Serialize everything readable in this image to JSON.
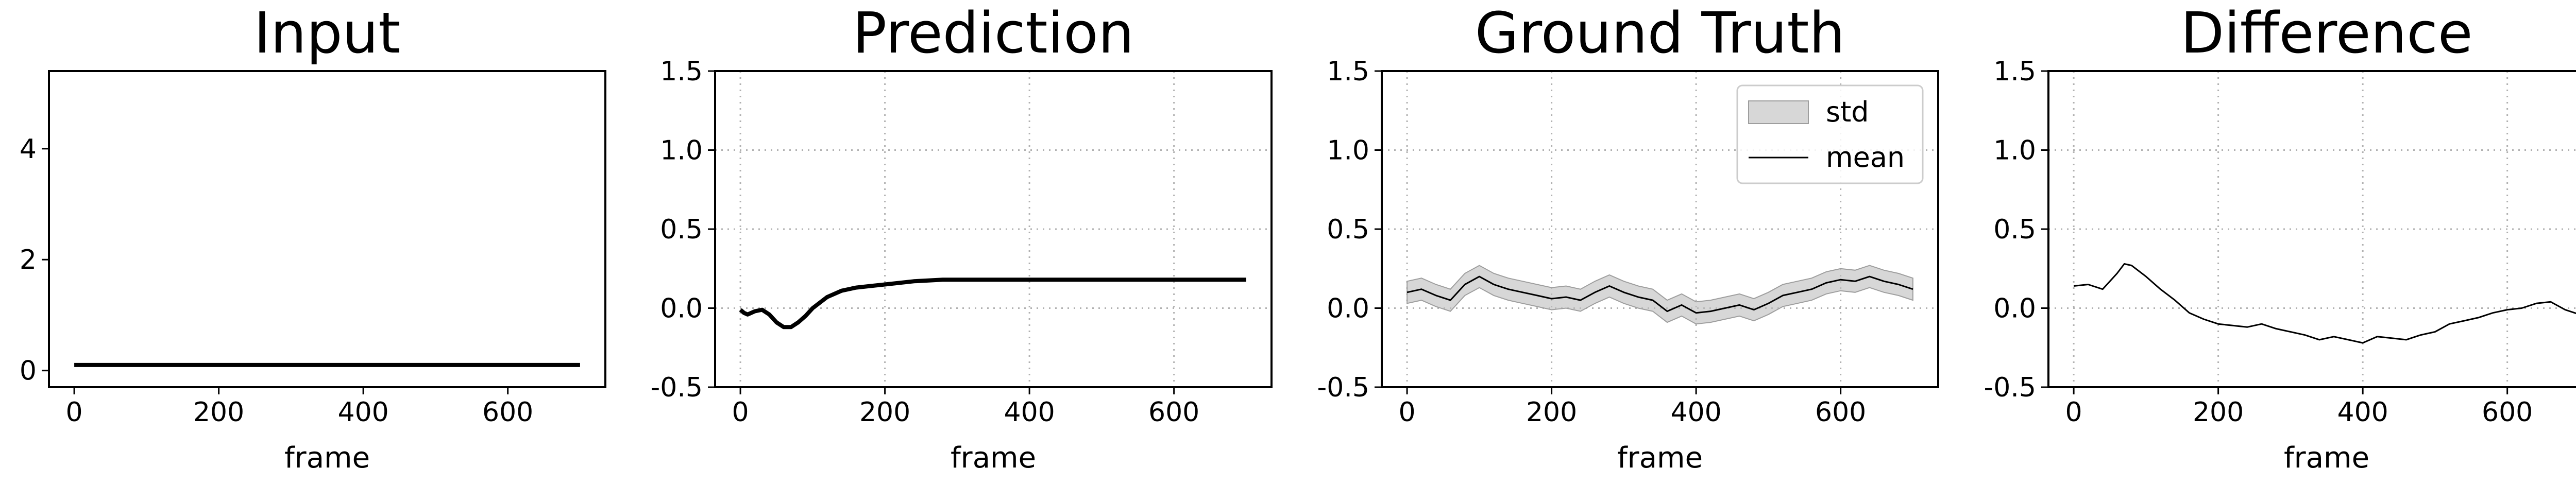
{
  "chart_data": [
    {
      "type": "line",
      "title": "Input",
      "xlabel": "frame",
      "ylabel": "",
      "xlim": [
        -35,
        735
      ],
      "ylim": [
        -0.3,
        5.4
      ],
      "xticks": [
        0,
        200,
        400,
        600
      ],
      "yticks": [
        0,
        2,
        4
      ],
      "grid": false,
      "series": [
        {
          "x": [
            0,
            700
          ],
          "y": [
            0.1,
            0.1
          ]
        }
      ]
    },
    {
      "type": "line",
      "title": "Prediction",
      "xlabel": "frame",
      "ylabel": "",
      "xlim": [
        -35,
        735
      ],
      "ylim": [
        -0.5,
        1.5
      ],
      "xticks": [
        0,
        200,
        400,
        600
      ],
      "yticks": [
        -0.5,
        0.0,
        0.5,
        1.0,
        1.5
      ],
      "grid": true,
      "series": [
        {
          "x": [
            0,
            5,
            10,
            20,
            30,
            40,
            50,
            60,
            70,
            80,
            90,
            100,
            120,
            140,
            160,
            180,
            200,
            240,
            280,
            300,
            350,
            400,
            500,
            600,
            700
          ],
          "y": [
            -0.01,
            -0.03,
            -0.04,
            -0.02,
            -0.01,
            -0.04,
            -0.09,
            -0.12,
            -0.12,
            -0.09,
            -0.05,
            0.0,
            0.07,
            0.11,
            0.13,
            0.14,
            0.15,
            0.17,
            0.18,
            0.18,
            0.18,
            0.18,
            0.18,
            0.18,
            0.18
          ]
        }
      ]
    },
    {
      "type": "line",
      "title": "Ground Truth",
      "xlabel": "frame",
      "ylabel": "",
      "xlim": [
        -35,
        735
      ],
      "ylim": [
        -0.5,
        1.5
      ],
      "xticks": [
        0,
        200,
        400,
        600
      ],
      "yticks": [
        -0.5,
        0.0,
        0.5,
        1.0,
        1.5
      ],
      "grid": true,
      "legend": {
        "position": "top-right",
        "entries": [
          "std",
          "mean"
        ]
      },
      "series": [
        {
          "name": "mean",
          "x": [
            0,
            20,
            40,
            60,
            80,
            100,
            120,
            140,
            160,
            180,
            200,
            220,
            240,
            260,
            280,
            300,
            320,
            340,
            360,
            380,
            400,
            420,
            440,
            460,
            480,
            500,
            520,
            540,
            560,
            580,
            600,
            620,
            640,
            660,
            680,
            700
          ],
          "y": [
            0.1,
            0.12,
            0.08,
            0.05,
            0.15,
            0.2,
            0.15,
            0.12,
            0.1,
            0.08,
            0.06,
            0.07,
            0.05,
            0.1,
            0.14,
            0.1,
            0.07,
            0.05,
            -0.02,
            0.02,
            -0.03,
            -0.02,
            0.0,
            0.02,
            -0.01,
            0.03,
            0.08,
            0.1,
            0.12,
            0.16,
            0.18,
            0.17,
            0.2,
            0.17,
            0.15,
            0.12
          ]
        },
        {
          "name": "std",
          "band": 0.07
        }
      ]
    },
    {
      "type": "line",
      "title": "Difference",
      "xlabel": "frame",
      "ylabel": "",
      "xlim": [
        -35,
        735
      ],
      "ylim": [
        -0.5,
        1.5
      ],
      "xticks": [
        0,
        200,
        400,
        600
      ],
      "yticks": [
        -0.5,
        0.0,
        0.5,
        1.0,
        1.5
      ],
      "grid": true,
      "series": [
        {
          "x": [
            0,
            20,
            40,
            60,
            70,
            80,
            100,
            120,
            140,
            160,
            180,
            200,
            220,
            240,
            260,
            280,
            300,
            320,
            340,
            360,
            380,
            400,
            420,
            440,
            460,
            480,
            500,
            520,
            540,
            560,
            580,
            600,
            620,
            640,
            660,
            680,
            700
          ],
          "y": [
            0.14,
            0.15,
            0.12,
            0.22,
            0.28,
            0.27,
            0.2,
            0.12,
            0.05,
            -0.03,
            -0.07,
            -0.1,
            -0.11,
            -0.12,
            -0.1,
            -0.13,
            -0.15,
            -0.17,
            -0.2,
            -0.18,
            -0.2,
            -0.22,
            -0.18,
            -0.19,
            -0.2,
            -0.17,
            -0.15,
            -0.1,
            -0.08,
            -0.06,
            -0.03,
            -0.01,
            0.0,
            0.03,
            0.04,
            -0.01,
            -0.04
          ]
        }
      ]
    }
  ]
}
